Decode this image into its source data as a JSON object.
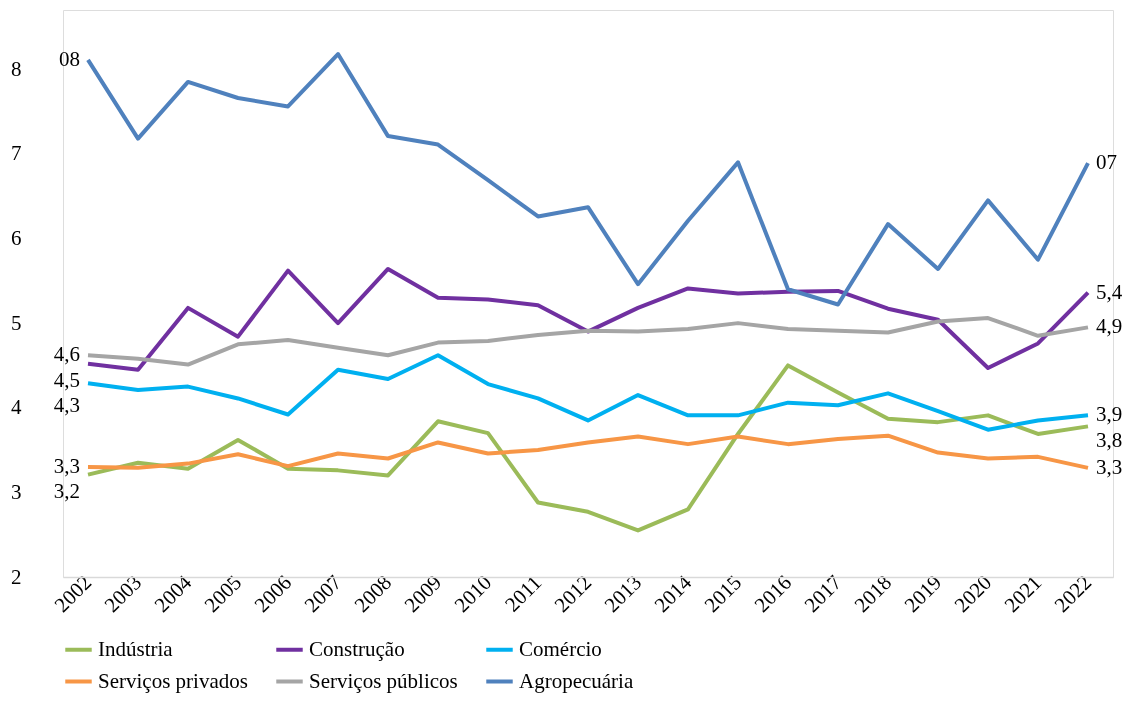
{
  "chart_data": {
    "type": "line",
    "categories": [
      "2002",
      "2003",
      "2004",
      "2005",
      "2006",
      "2007",
      "2008",
      "2009",
      "2010",
      "2011",
      "2012",
      "2013",
      "2014",
      "2015",
      "2016",
      "2017",
      "2018",
      "2019",
      "2020",
      "2021",
      "2022"
    ],
    "series": [
      {
        "name": "Indústria",
        "color": "#9bbb59",
        "values": [
          3.21,
          3.35,
          3.28,
          3.62,
          3.28,
          3.26,
          3.2,
          3.84,
          3.7,
          2.88,
          2.77,
          2.55,
          2.8,
          3.69,
          4.5,
          4.18,
          3.87,
          3.83,
          3.91,
          3.69,
          3.78
        ],
        "value_labels": [
          "3,2",
          null,
          null,
          null,
          null,
          null,
          null,
          null,
          null,
          null,
          null,
          null,
          null,
          null,
          null,
          null,
          null,
          null,
          null,
          null,
          "3,8"
        ]
      },
      {
        "name": "Construção",
        "color": "#7030a0",
        "values": [
          4.52,
          4.45,
          5.18,
          4.84,
          5.62,
          5.0,
          5.64,
          5.3,
          5.28,
          5.21,
          4.9,
          5.18,
          5.41,
          5.35,
          5.37,
          5.38,
          5.17,
          5.04,
          4.47,
          4.76,
          5.36
        ],
        "value_labels": [
          "4,5",
          null,
          null,
          null,
          null,
          null,
          null,
          null,
          null,
          null,
          null,
          null,
          null,
          null,
          null,
          null,
          null,
          null,
          null,
          null,
          "5,4"
        ]
      },
      {
        "name": "Comércio",
        "color": "#00b0f0",
        "values": [
          4.29,
          4.21,
          4.25,
          4.11,
          3.92,
          4.45,
          4.34,
          4.62,
          4.28,
          4.11,
          3.85,
          4.15,
          3.91,
          3.91,
          4.06,
          4.03,
          4.17,
          3.96,
          3.74,
          3.85,
          3.91
        ],
        "value_labels": [
          "4,3",
          null,
          null,
          null,
          null,
          null,
          null,
          null,
          null,
          null,
          null,
          null,
          null,
          null,
          null,
          null,
          null,
          null,
          null,
          null,
          "3,9"
        ]
      },
      {
        "name": "Serviços privados",
        "color": "#f79646",
        "values": [
          3.3,
          3.29,
          3.34,
          3.45,
          3.31,
          3.46,
          3.4,
          3.59,
          3.46,
          3.5,
          3.59,
          3.66,
          3.57,
          3.66,
          3.57,
          3.63,
          3.67,
          3.47,
          3.4,
          3.42,
          3.29
        ],
        "value_labels": [
          "3,3",
          null,
          null,
          null,
          null,
          null,
          null,
          null,
          null,
          null,
          null,
          null,
          null,
          null,
          null,
          null,
          null,
          null,
          null,
          null,
          "3,3"
        ]
      },
      {
        "name": "Serviços públicos",
        "color": "#a5a5a5",
        "values": [
          4.62,
          4.58,
          4.51,
          4.75,
          4.8,
          4.71,
          4.62,
          4.77,
          4.79,
          4.86,
          4.91,
          4.9,
          4.93,
          5.0,
          4.93,
          4.91,
          4.89,
          5.02,
          5.06,
          4.85,
          4.95
        ],
        "value_labels": [
          "4,6",
          null,
          null,
          null,
          null,
          null,
          null,
          null,
          null,
          null,
          null,
          null,
          null,
          null,
          null,
          null,
          null,
          null,
          null,
          null,
          "4,9"
        ]
      },
      {
        "name": "Agropecuária",
        "color": "#4f81bd",
        "values": [
          8.11,
          7.18,
          7.85,
          7.66,
          7.56,
          8.18,
          7.21,
          7.11,
          6.69,
          6.26,
          6.37,
          5.46,
          6.21,
          6.9,
          5.4,
          5.22,
          6.17,
          5.64,
          6.45,
          5.75,
          6.89
        ],
        "value_labels": [
          "08",
          null,
          null,
          null,
          null,
          null,
          null,
          null,
          null,
          null,
          null,
          null,
          null,
          null,
          null,
          null,
          null,
          null,
          null,
          null,
          "07"
        ]
      }
    ],
    "ylim": [
      2,
      8.7
    ],
    "yticks": [
      2,
      3,
      4,
      5,
      6,
      7,
      8
    ],
    "grid": false,
    "legend": "bottom",
    "line_style": "solid",
    "marker": "none"
  }
}
